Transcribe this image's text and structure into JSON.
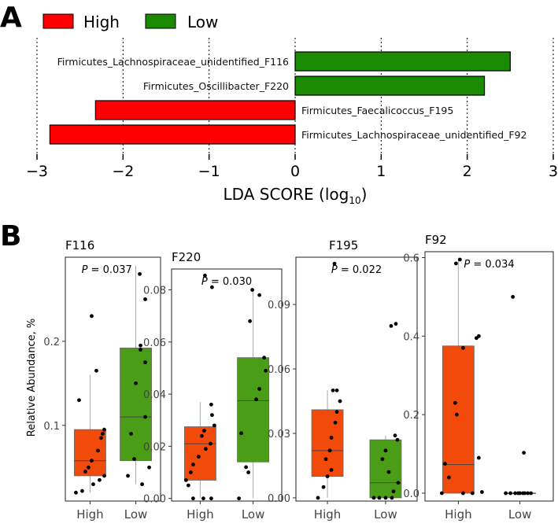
{
  "panel_a": {
    "letter": "A",
    "legend": [
      {
        "label": "High",
        "color": "#ff0000"
      },
      {
        "label": "Low",
        "color": "#1a8a00"
      }
    ],
    "xlabel_main": "LDA SCORE (log",
    "xlabel_sub": "10",
    "xlabel_end": ")"
  },
  "panel_b": {
    "letter": "B",
    "ylabel": "Relative Abundance, %",
    "colors": {
      "high": "#f24a0a",
      "low": "#4a9e17"
    }
  },
  "chart_data": [
    {
      "type": "bar",
      "orientation": "horizontal",
      "title": "",
      "xlabel": "LDA SCORE (log10)",
      "xlim": [
        -3,
        3
      ],
      "xticks": [
        -3,
        -2,
        -1,
        0,
        1,
        2,
        3
      ],
      "categories": [
        "Firmicutes_Lachnospiraceae_unidentified_F116",
        "Firmicutes_Oscillibacter_F220",
        "Firmicutes_Faecalicoccus_F195",
        "Firmicutes_Lachnospiraceae_unidentified_F92"
      ],
      "values": [
        2.5,
        2.2,
        -2.32,
        -2.85
      ],
      "groups": [
        "Low",
        "Low",
        "High",
        "High"
      ]
    },
    {
      "type": "box",
      "title": "F116",
      "p_label": "P = 0.037",
      "ylim": [
        0.01,
        0.3
      ],
      "yticks": [
        0.1,
        0.2
      ],
      "ytick_labels": [
        "0.1",
        "0.2"
      ],
      "categories": [
        "High",
        "Low"
      ],
      "boxes": [
        {
          "group": "High",
          "min": 0.02,
          "q1": 0.04,
          "median": 0.058,
          "q3": 0.095,
          "max": 0.16,
          "points": [
            0.02,
            0.022,
            0.03,
            0.035,
            0.04,
            0.045,
            0.05,
            0.058,
            0.07,
            0.085,
            0.09,
            0.095,
            0.13,
            0.165,
            0.23
          ]
        },
        {
          "group": "Low",
          "min": 0.03,
          "q1": 0.058,
          "median": 0.11,
          "q3": 0.192,
          "max": 0.29,
          "points": [
            0.03,
            0.04,
            0.05,
            0.06,
            0.09,
            0.11,
            0.15,
            0.175,
            0.19,
            0.195,
            0.25,
            0.28
          ]
        }
      ]
    },
    {
      "type": "box",
      "title": "F220",
      "p_label": "P = 0.030",
      "ylim": [
        -0.001,
        0.088
      ],
      "yticks": [
        0,
        0.02,
        0.04,
        0.06,
        0.08
      ],
      "ytick_labels": [
        "0.00",
        "0.02",
        "0.04",
        "0.06",
        "0.08"
      ],
      "categories": [
        "High",
        "Low"
      ],
      "boxes": [
        {
          "group": "High",
          "min": 0,
          "q1": 0.007,
          "median": 0.021,
          "q3": 0.0275,
          "max": 0.037,
          "points": [
            0,
            0,
            0,
            0.005,
            0.007,
            0.01,
            0.013,
            0.016,
            0.019,
            0.021,
            0.024,
            0.026,
            0.028,
            0.032,
            0.036,
            0.081,
            0.0855
          ]
        },
        {
          "group": "Low",
          "min": 0,
          "q1": 0.014,
          "median": 0.0375,
          "q3": 0.054,
          "max": 0.08,
          "points": [
            0,
            0.01,
            0.012,
            0.025,
            0.038,
            0.042,
            0.049,
            0.054,
            0.068,
            0.078,
            0.08
          ]
        }
      ]
    },
    {
      "type": "box",
      "title": "F195",
      "p_label": "P = 0.022",
      "ylim": [
        -0.0015,
        0.112
      ],
      "yticks": [
        0,
        0.03,
        0.06,
        0.09
      ],
      "ytick_labels": [
        "0.00",
        "0.03",
        "0.06",
        "0.09"
      ],
      "categories": [
        "High",
        "Low"
      ],
      "boxes": [
        {
          "group": "High",
          "min": 0,
          "q1": 0.01,
          "median": 0.022,
          "q3": 0.041,
          "max": 0.05,
          "points": [
            0,
            0.005,
            0.01,
            0.013,
            0.018,
            0.022,
            0.028,
            0.035,
            0.04,
            0.045,
            0.05,
            0.05,
            0.109
          ]
        },
        {
          "group": "Low",
          "min": 0,
          "q1": 0,
          "median": 0.007,
          "q3": 0.027,
          "max": 0.029,
          "points": [
            0,
            0,
            0,
            0,
            0.003,
            0.007,
            0.012,
            0.018,
            0.022,
            0.027,
            0.029,
            0.08,
            0.081
          ]
        }
      ]
    },
    {
      "type": "box",
      "title": "F92",
      "p_label": "P = 0.034",
      "ylim": [
        -0.02,
        0.615
      ],
      "yticks": [
        0,
        0.2,
        0.4,
        0.6
      ],
      "ytick_labels": [
        "0.0",
        "0.2",
        "0.4",
        "0.6"
      ],
      "categories": [
        "High",
        "Low"
      ],
      "boxes": [
        {
          "group": "High",
          "min": 0,
          "q1": 0,
          "median": 0.073,
          "q3": 0.375,
          "max": 0.6,
          "points": [
            0,
            0,
            0,
            0.003,
            0.04,
            0.075,
            0.09,
            0.2,
            0.23,
            0.37,
            0.395,
            0.4,
            0.585,
            0.595
          ]
        },
        {
          "group": "Low",
          "min": 0,
          "q1": 0,
          "median": 0,
          "q3": 0,
          "max": 0,
          "points": [
            0,
            0,
            0,
            0,
            0,
            0,
            0,
            0,
            0,
            0.103,
            0.5
          ]
        }
      ]
    }
  ]
}
